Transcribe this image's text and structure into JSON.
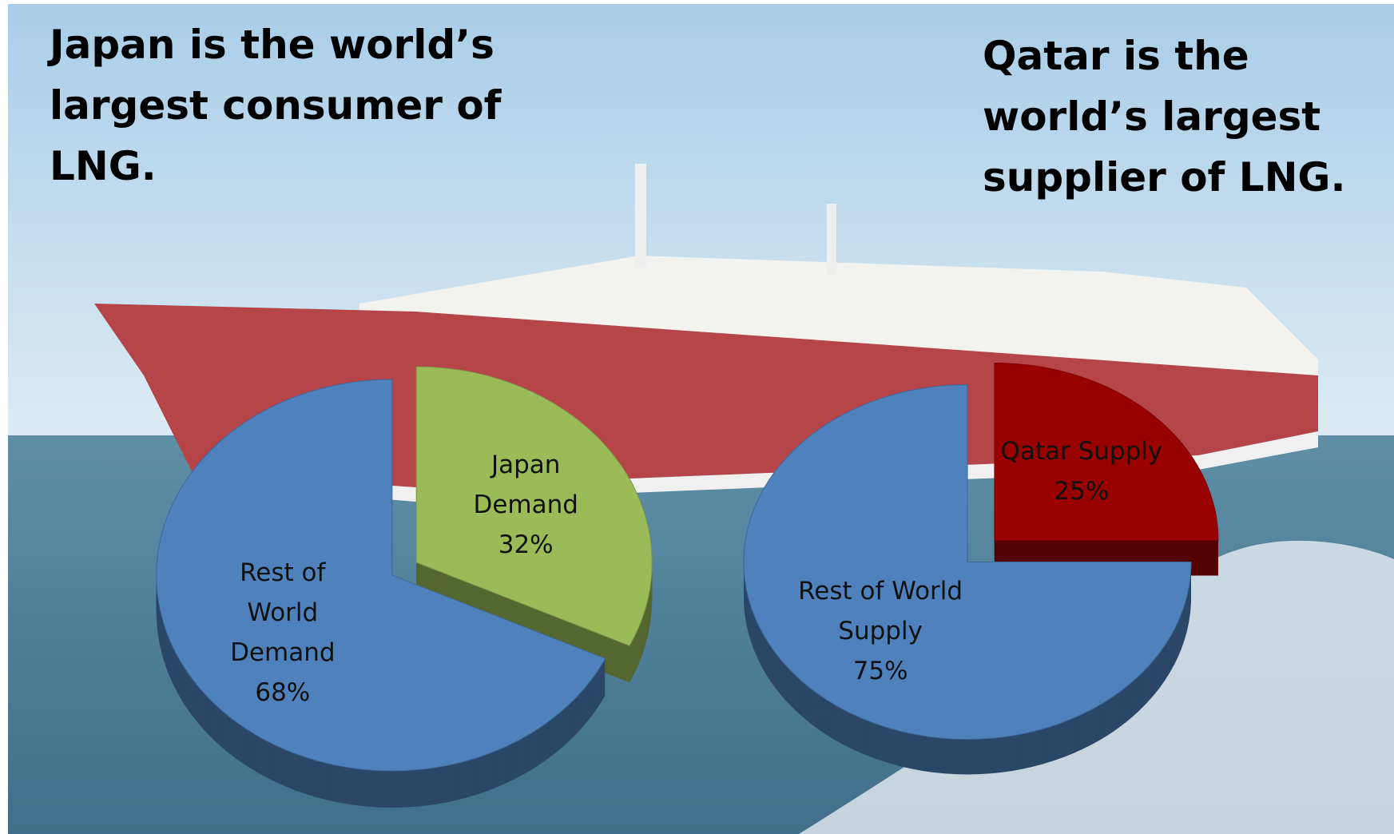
{
  "chart_data": [
    {
      "type": "pie",
      "title": "Japan is the world’s largest consumer of LNG.",
      "categories": [
        "Japan Demand",
        "Rest of World Demand"
      ],
      "values": [
        32,
        68
      ],
      "value_labels": [
        "32%",
        "68%"
      ],
      "colors": [
        "#9bbb59",
        "#4f81bd"
      ]
    },
    {
      "type": "pie",
      "title": "Qatar is the world’s largest supplier of LNG.",
      "categories": [
        "Qatar Supply",
        "Rest of World Supply"
      ],
      "values": [
        25,
        75
      ],
      "value_labels": [
        "25%",
        "75%"
      ],
      "colors": [
        "#990000",
        "#4f81bd"
      ]
    }
  ]
}
